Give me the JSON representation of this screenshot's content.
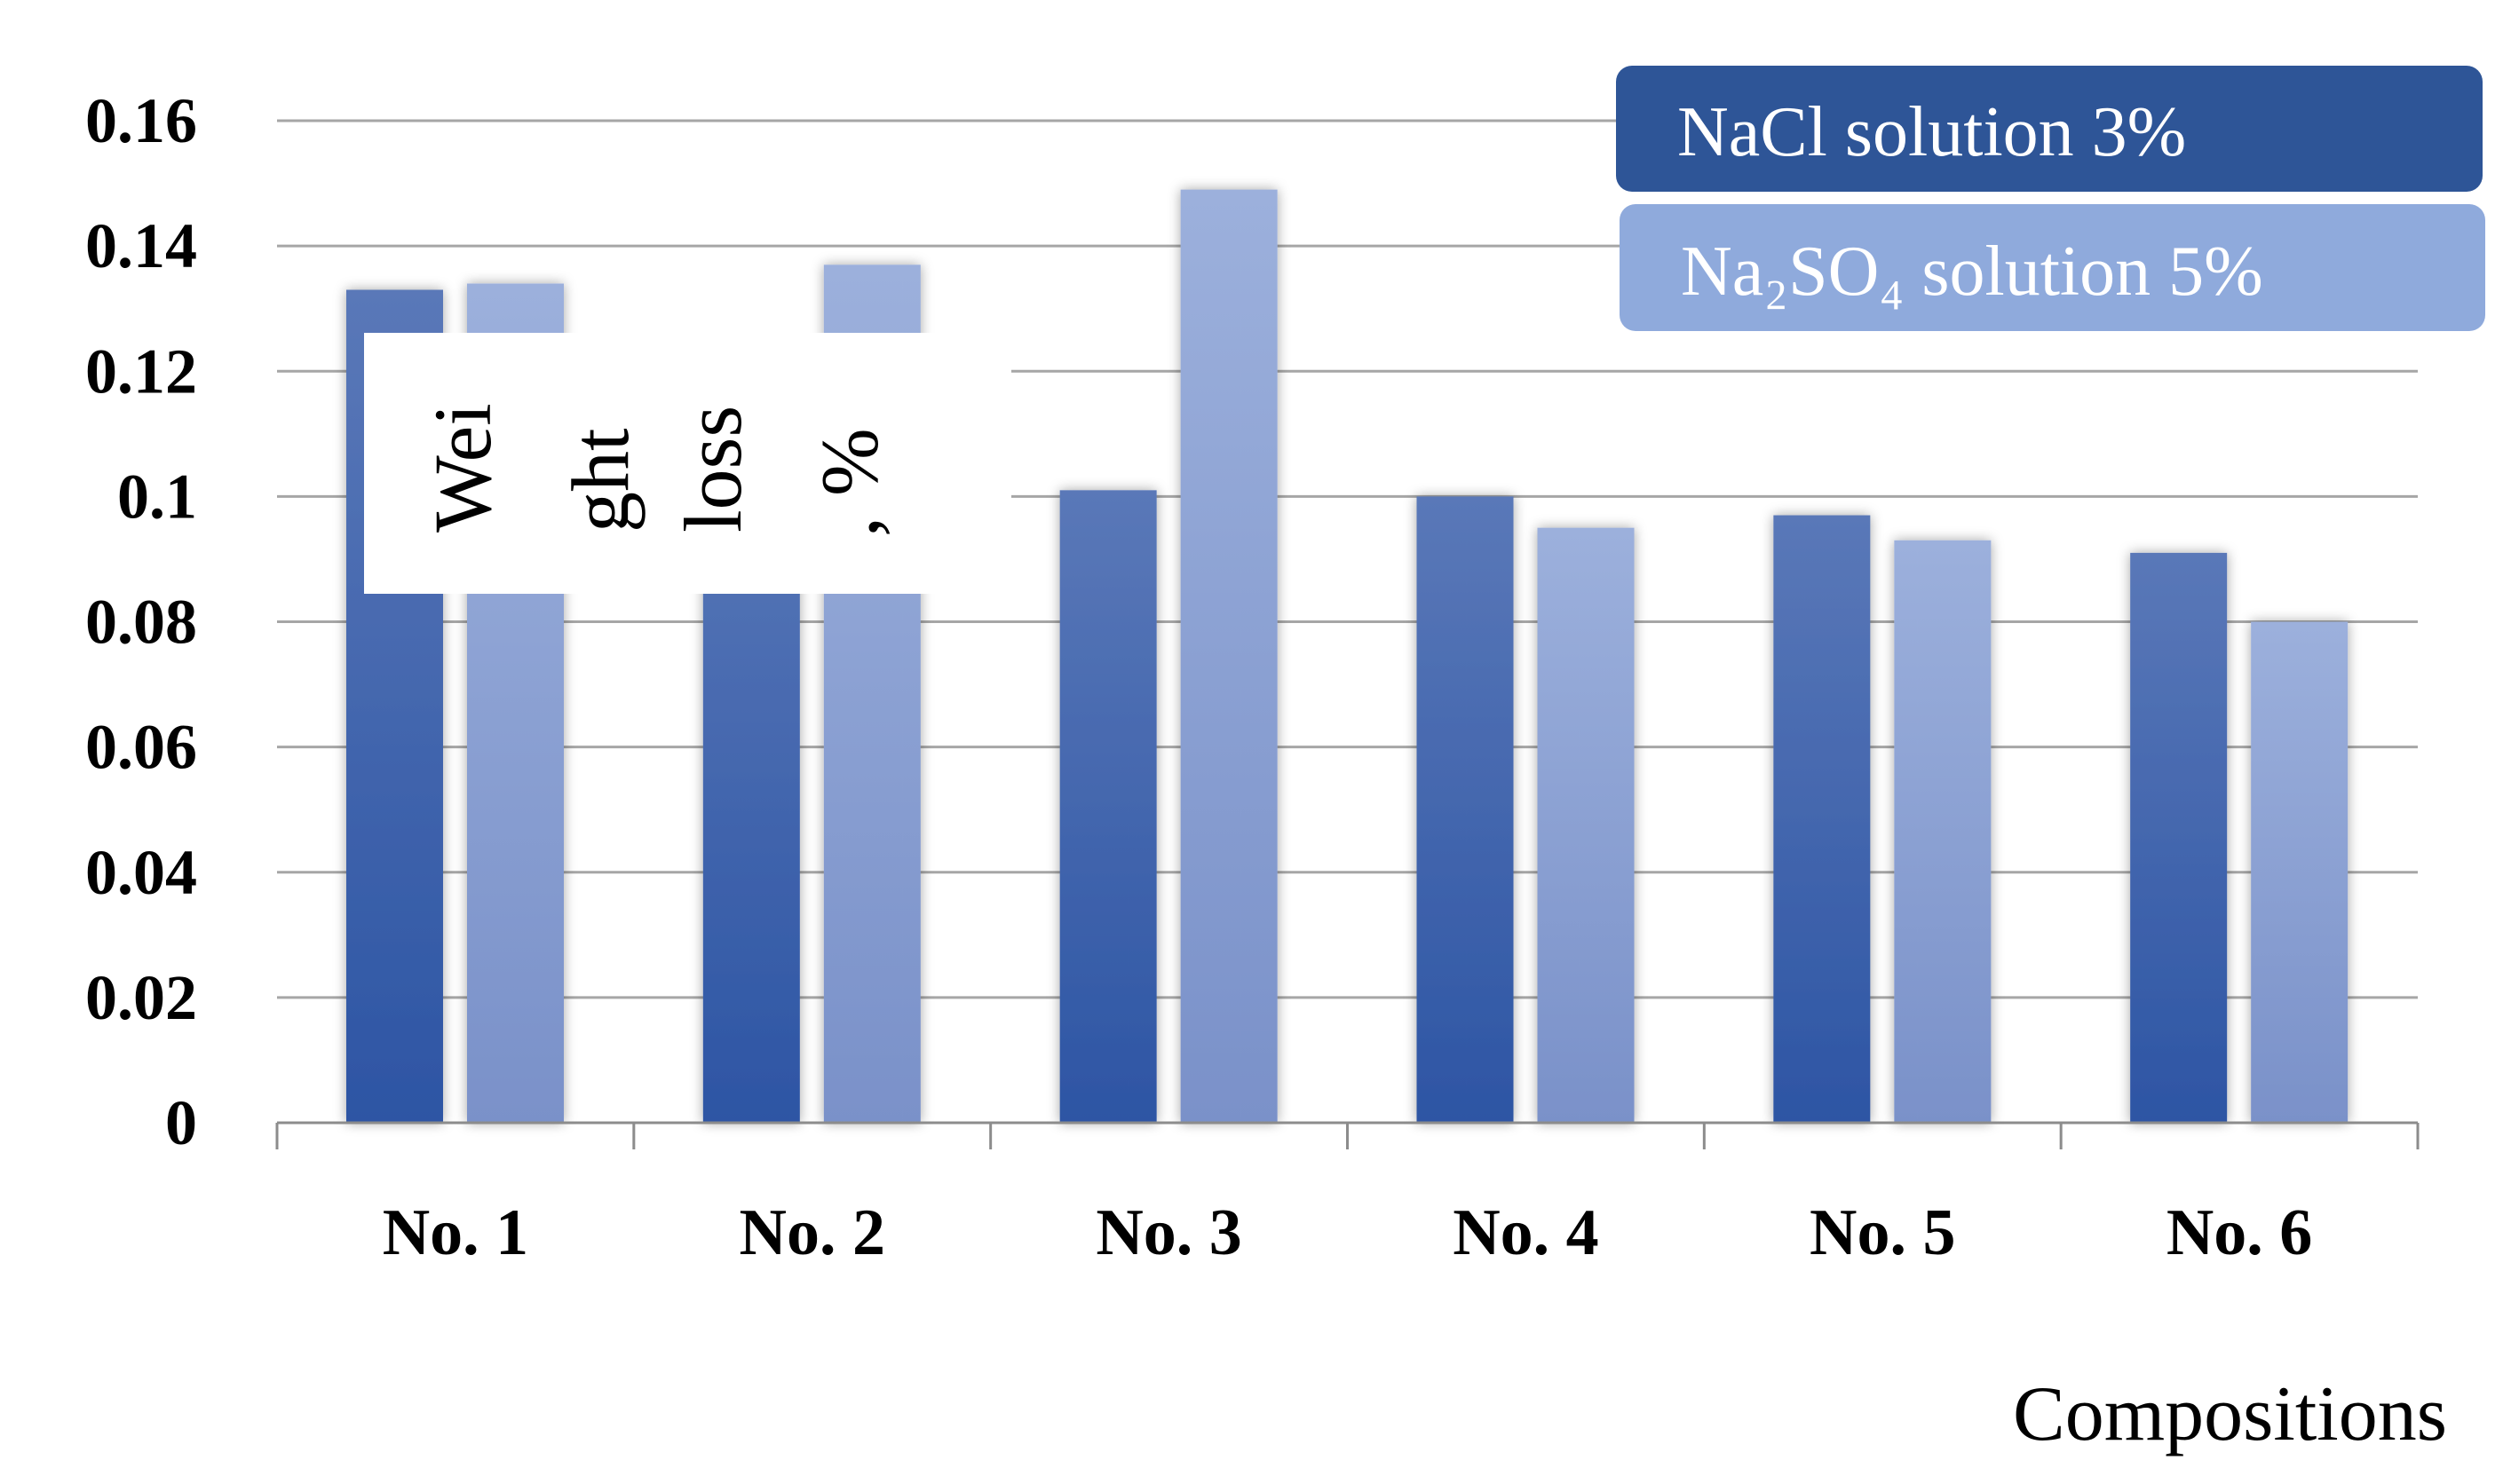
{
  "chart_data": {
    "type": "bar",
    "categories": [
      "No. 1",
      "No. 2",
      "No. 3",
      "No. 4",
      "No. 5",
      "No. 6"
    ],
    "series": [
      {
        "name": "NaCl solution 3%",
        "color": "#2e5597",
        "values": [
          0.133,
          0.11,
          0.101,
          0.1,
          0.097,
          0.091
        ]
      },
      {
        "name": "Na₂SO₄ solution 5%",
        "color": "#8faadc",
        "values": [
          0.134,
          0.137,
          0.149,
          0.095,
          0.093,
          0.08
        ]
      }
    ],
    "title": "",
    "ylabel_parts": [
      "Wei",
      "ght",
      "loss",
      ", %"
    ],
    "xlabel": "Compositions",
    "ylim": [
      0,
      0.16
    ],
    "yticks": [
      "0",
      "0.02",
      "0.04",
      "0.06",
      "0.08",
      "0.1",
      "0.12",
      "0.14",
      "0.16"
    ],
    "grid": true,
    "legend": "top-right"
  }
}
